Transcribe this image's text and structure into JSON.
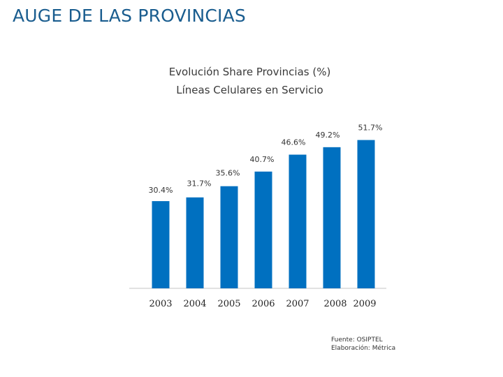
{
  "page": {
    "title": "AUGE DE LAS PROVINCIAS"
  },
  "chart_data": {
    "type": "bar",
    "title": "Evolución Share Provincias (%)",
    "subtitle": "Líneas Celulares en Servicio",
    "categories": [
      "2003",
      "2004",
      "2005",
      "2006",
      "2007",
      "2008",
      "2009"
    ],
    "values": [
      30.4,
      31.7,
      35.6,
      40.7,
      46.6,
      49.2,
      51.7
    ],
    "value_labels": [
      "30.4%",
      "31.7%",
      "35.6%",
      "40.7%",
      "46.6%",
      "49.2%",
      "51.7%"
    ],
    "xlabel": "",
    "ylabel": "",
    "ylim": [
      0,
      55
    ],
    "grid": false,
    "bar_color": "#0070c0"
  },
  "source": {
    "line1": "Fuente: OSIPTEL",
    "line2": "Elaboración: Métrica"
  }
}
